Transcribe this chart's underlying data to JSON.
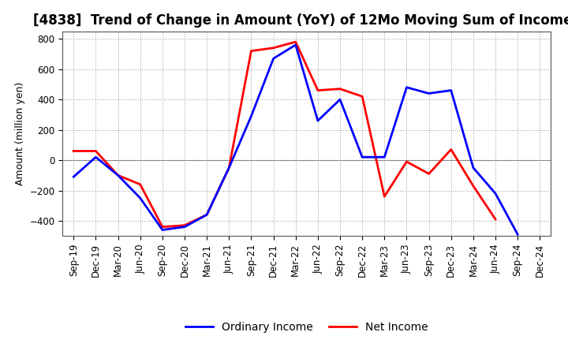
{
  "title": "[4838]  Trend of Change in Amount (YoY) of 12Mo Moving Sum of Incomes",
  "ylabel": "Amount (million yen)",
  "ylim": [
    -500,
    850
  ],
  "yticks": [
    -400,
    -200,
    0,
    200,
    400,
    600,
    800
  ],
  "x_labels": [
    "Sep-19",
    "Dec-19",
    "Mar-20",
    "Jun-20",
    "Sep-20",
    "Dec-20",
    "Mar-21",
    "Jun-21",
    "Sep-21",
    "Dec-21",
    "Mar-22",
    "Jun-22",
    "Sep-22",
    "Dec-22",
    "Mar-23",
    "Jun-23",
    "Sep-23",
    "Dec-23",
    "Mar-24",
    "Jun-24",
    "Sep-24",
    "Dec-24"
  ],
  "ordinary_income": [
    -110,
    20,
    -100,
    -250,
    -460,
    -440,
    -360,
    -50,
    290,
    670,
    760,
    260,
    400,
    20,
    20,
    480,
    440,
    460,
    -50,
    -220,
    -490,
    null
  ],
  "net_income": [
    60,
    60,
    -100,
    -160,
    -440,
    -430,
    -360,
    -50,
    720,
    740,
    780,
    460,
    470,
    420,
    -240,
    -10,
    -90,
    70,
    -170,
    -390,
    null,
    null
  ],
  "ordinary_color": "#0000FF",
  "net_color": "#FF0000",
  "background_color": "#FFFFFF",
  "grid_color": "#999999",
  "title_fontsize": 12,
  "legend_fontsize": 10,
  "axis_fontsize": 8.5
}
